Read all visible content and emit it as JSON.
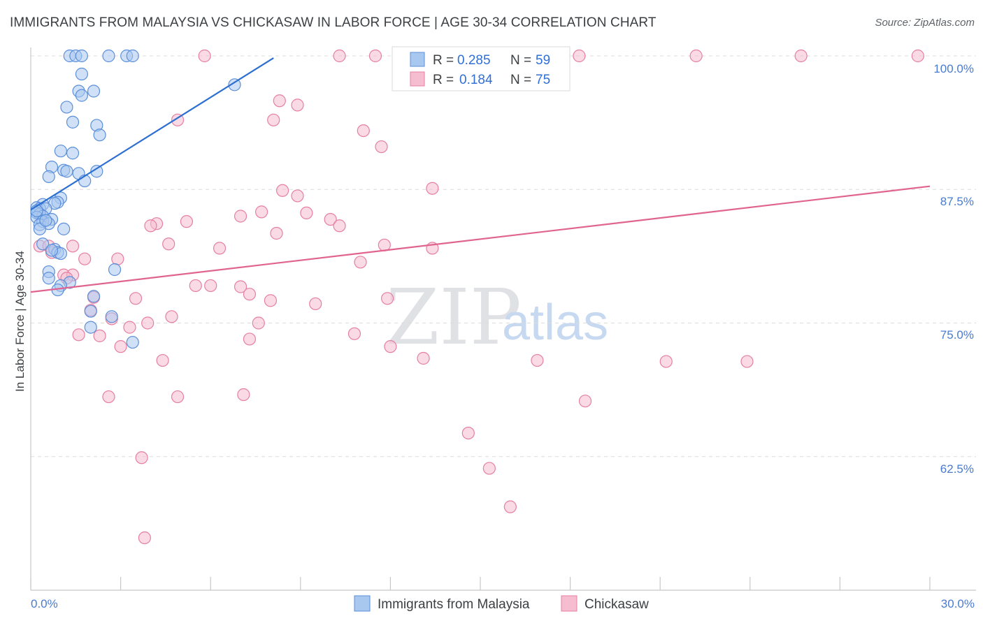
{
  "title": "IMMIGRANTS FROM MALAYSIA VS CHICKASAW IN LABOR FORCE | AGE 30-34 CORRELATION CHART",
  "source": "Source: ZipAtlas.com",
  "watermark": {
    "zip": "ZIP",
    "atlas": "atlas"
  },
  "legend": {
    "r_label": "R =",
    "n_label": "N =",
    "rows": [
      {
        "r": "0.285",
        "n": "59"
      },
      {
        "r": "0.184",
        "n": "75"
      }
    ]
  },
  "colors": {
    "blue_fill": "#a9c8f0",
    "blue_stroke": "#5b8fd9",
    "blue_line": "#2c6fd1",
    "pink_fill": "#f6bdd0",
    "pink_stroke": "#e57fa3",
    "pink_line": "#e0648f",
    "grid": "#dcdcdc"
  },
  "chart_data": {
    "type": "scatter",
    "title": "IMMIGRANTS FROM MALAYSIA VS CHICKASAW IN LABOR FORCE | AGE 30-34 CORRELATION CHART",
    "xlabel": "",
    "ylabel": "In Labor Force | Age 30-34",
    "xlim": [
      0,
      30
    ],
    "ylim": [
      50,
      100.5
    ],
    "x_tick_labels": [
      "0.0%",
      "30.0%"
    ],
    "y_ticks": [
      62.5,
      75.0,
      87.5,
      100.0
    ],
    "y_tick_labels": [
      "62.5%",
      "75.0%",
      "87.5%",
      "100.0%"
    ],
    "grid": true,
    "legend_position": "top-center",
    "series": [
      {
        "name": "Immigrants from Malaysia",
        "r": 0.285,
        "n": 59,
        "trend": {
          "x": [
            0.0,
            8.1
          ],
          "y": [
            85.6,
            99.8
          ]
        },
        "points": [
          [
            1.3,
            100
          ],
          [
            1.5,
            100
          ],
          [
            1.7,
            100
          ],
          [
            2.6,
            100
          ],
          [
            3.2,
            100
          ],
          [
            3.4,
            100
          ],
          [
            6.8,
            97.3
          ],
          [
            1.7,
            98.3
          ],
          [
            2.1,
            96.7
          ],
          [
            1.6,
            96.7
          ],
          [
            1.7,
            96.3
          ],
          [
            1.2,
            95.2
          ],
          [
            1.4,
            93.8
          ],
          [
            2.2,
            93.5
          ],
          [
            2.3,
            92.6
          ],
          [
            1.0,
            91.1
          ],
          [
            1.4,
            90.9
          ],
          [
            0.7,
            89.6
          ],
          [
            1.1,
            89.3
          ],
          [
            1.2,
            89.2
          ],
          [
            1.6,
            89.0
          ],
          [
            2.2,
            89.2
          ],
          [
            1.8,
            88.3
          ],
          [
            0.6,
            88.7
          ],
          [
            1.0,
            86.7
          ],
          [
            0.9,
            86.3
          ],
          [
            0.4,
            86.1
          ],
          [
            0.8,
            86.2
          ],
          [
            0.2,
            85.8
          ],
          [
            0.3,
            85.7
          ],
          [
            0.5,
            85.7
          ],
          [
            0.2,
            85.3
          ],
          [
            0.3,
            85.2
          ],
          [
            0.4,
            85.0
          ],
          [
            0.2,
            84.9
          ],
          [
            0.7,
            84.7
          ],
          [
            0.4,
            84.5
          ],
          [
            0.3,
            84.2
          ],
          [
            0.6,
            84.3
          ],
          [
            0.3,
            83.8
          ],
          [
            1.1,
            83.8
          ],
          [
            0.4,
            82.4
          ],
          [
            0.8,
            81.9
          ],
          [
            0.9,
            81.6
          ],
          [
            1.0,
            81.5
          ],
          [
            0.6,
            79.8
          ],
          [
            2.8,
            80.0
          ],
          [
            0.6,
            79.2
          ],
          [
            1.3,
            78.8
          ],
          [
            1.0,
            78.5
          ],
          [
            0.9,
            78.1
          ],
          [
            2.1,
            77.5
          ],
          [
            2.0,
            76.1
          ],
          [
            2.7,
            75.6
          ],
          [
            2.0,
            74.6
          ],
          [
            3.4,
            73.2
          ],
          [
            0.2,
            85.5
          ],
          [
            0.5,
            84.6
          ],
          [
            0.7,
            81.8
          ]
        ]
      },
      {
        "name": "Chickasaw",
        "r": 0.184,
        "n": 75,
        "trend": {
          "x": [
            0.0,
            30.0
          ],
          "y": [
            77.9,
            87.8
          ]
        },
        "points": [
          [
            5.8,
            100
          ],
          [
            10.3,
            100
          ],
          [
            11.5,
            100
          ],
          [
            13.6,
            100
          ],
          [
            18.3,
            100
          ],
          [
            22.2,
            100
          ],
          [
            25.7,
            100
          ],
          [
            29.6,
            100
          ],
          [
            8.3,
            95.8
          ],
          [
            8.9,
            95.4
          ],
          [
            4.9,
            94.0
          ],
          [
            8.1,
            94.0
          ],
          [
            11.1,
            93.0
          ],
          [
            11.7,
            91.5
          ],
          [
            8.4,
            87.4
          ],
          [
            13.4,
            87.6
          ],
          [
            8.9,
            86.9
          ],
          [
            7.0,
            85.0
          ],
          [
            7.7,
            85.4
          ],
          [
            9.2,
            85.3
          ],
          [
            4.2,
            84.3
          ],
          [
            5.2,
            84.5
          ],
          [
            10.0,
            84.7
          ],
          [
            10.3,
            84.1
          ],
          [
            8.2,
            83.4
          ],
          [
            4.6,
            82.4
          ],
          [
            6.3,
            82.0
          ],
          [
            11.8,
            82.3
          ],
          [
            13.4,
            82.0
          ],
          [
            0.3,
            82.2
          ],
          [
            0.6,
            82.2
          ],
          [
            1.4,
            82.2
          ],
          [
            0.7,
            81.6
          ],
          [
            1.8,
            81.0
          ],
          [
            2.9,
            81.0
          ],
          [
            11.0,
            80.7
          ],
          [
            1.1,
            79.5
          ],
          [
            1.4,
            79.5
          ],
          [
            1.2,
            79.2
          ],
          [
            5.5,
            78.5
          ],
          [
            6.0,
            78.5
          ],
          [
            7.0,
            78.4
          ],
          [
            7.3,
            77.7
          ],
          [
            2.1,
            77.4
          ],
          [
            3.5,
            77.3
          ],
          [
            8.0,
            77.1
          ],
          [
            11.9,
            77.3
          ],
          [
            9.5,
            76.8
          ],
          [
            2.0,
            76.2
          ],
          [
            2.7,
            75.4
          ],
          [
            4.7,
            75.6
          ],
          [
            3.3,
            74.6
          ],
          [
            3.9,
            75.0
          ],
          [
            7.6,
            75.0
          ],
          [
            1.6,
            73.9
          ],
          [
            2.3,
            73.8
          ],
          [
            7.3,
            73.5
          ],
          [
            10.8,
            74.0
          ],
          [
            3.0,
            72.8
          ],
          [
            12.0,
            72.8
          ],
          [
            4.4,
            71.5
          ],
          [
            13.1,
            71.7
          ],
          [
            16.9,
            71.5
          ],
          [
            21.2,
            71.4
          ],
          [
            23.9,
            71.4
          ],
          [
            2.6,
            68.1
          ],
          [
            4.9,
            68.1
          ],
          [
            7.1,
            68.3
          ],
          [
            18.5,
            67.7
          ],
          [
            14.6,
            64.7
          ],
          [
            3.7,
            62.4
          ],
          [
            15.3,
            61.4
          ],
          [
            16.0,
            57.8
          ],
          [
            3.8,
            54.9
          ],
          [
            4.0,
            84.1
          ]
        ]
      }
    ]
  }
}
